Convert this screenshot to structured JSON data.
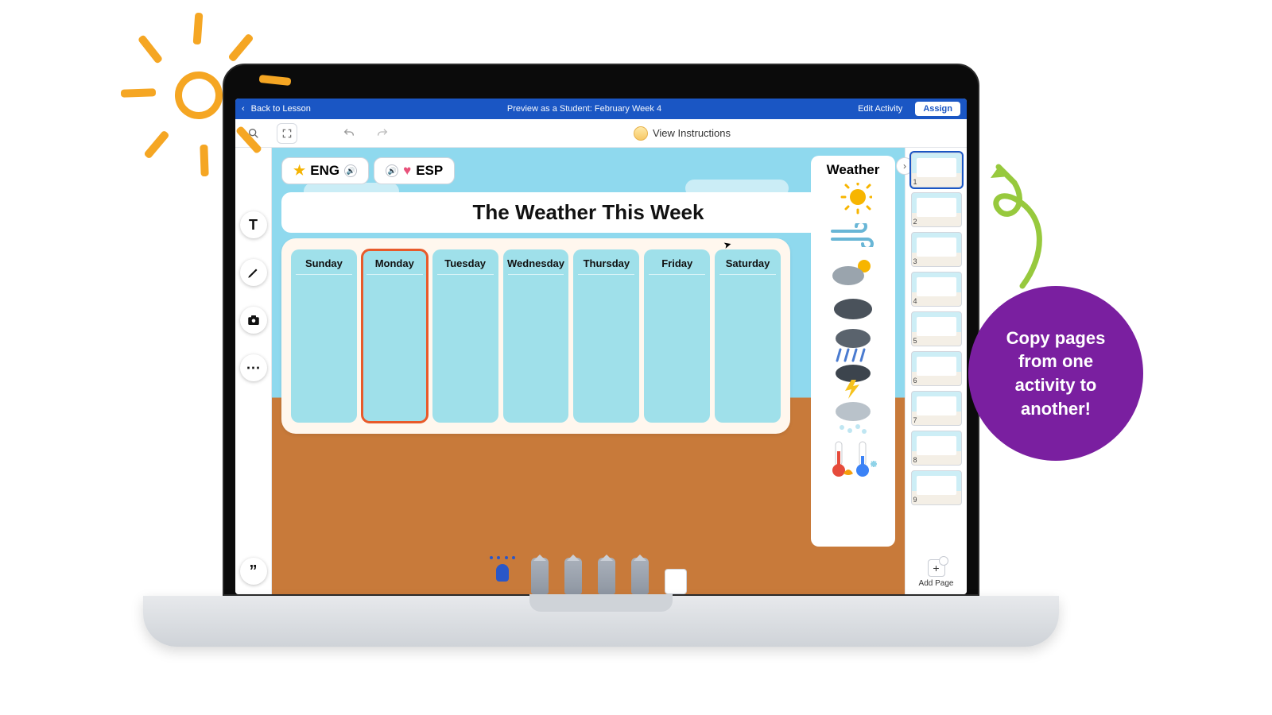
{
  "colors": {
    "brand_blue": "#1a56c4",
    "accent_orange": "#f5a623",
    "callout_purple": "#7a1fa0",
    "arrow_green": "#97c93d",
    "sky": "#8fd9ee",
    "ground": "#c87a3a",
    "day_cell": "#9fe0ea",
    "active_outline": "#e85a2a"
  },
  "topbar": {
    "back": "Back to Lesson",
    "title": "Preview as a Student: February Week 4",
    "edit": "Edit Activity",
    "assign": "Assign"
  },
  "toolbar": {
    "view_instructions": "View Instructions"
  },
  "language": {
    "eng": "ENG",
    "esp": "ESP"
  },
  "main_title": "The Weather This Week",
  "days": [
    "Sunday",
    "Monday",
    "Tuesday",
    "Wednesday",
    "Thursday",
    "Friday",
    "Saturday"
  ],
  "active_day_index": 1,
  "weather_panel": {
    "title": "Weather",
    "icons": [
      "sun",
      "wind",
      "partly-cloudy",
      "cloudy",
      "rain",
      "thunder",
      "snow-cloud",
      "thermometers"
    ]
  },
  "thumbnails": {
    "count": 9,
    "selected": 1,
    "add_page": "Add Page"
  },
  "callout": "Copy pages from one activity to another!"
}
